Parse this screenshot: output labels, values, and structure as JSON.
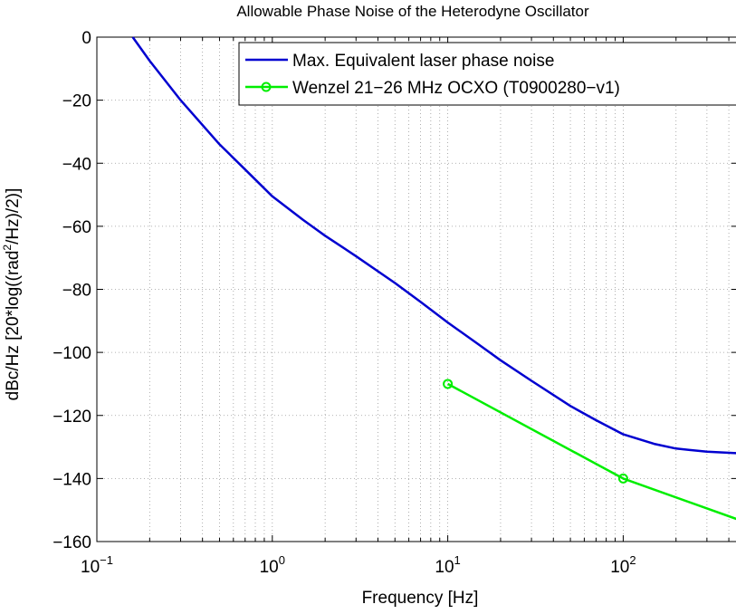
{
  "chart_data": {
    "type": "line",
    "title": "Allowable Phase Noise of the Heterodyne Oscillator",
    "xlabel": "Frequency [Hz]",
    "ylabel_prefix": "dBc/Hz [20*log((rad",
    "ylabel_sup": "2",
    "ylabel_suffix": "/Hz)/2)]",
    "x_scale": "log",
    "xlim": [
      0.1,
      450
    ],
    "ylim": [
      -160,
      0
    ],
    "grid": true,
    "legend_position": "top-right",
    "x_ticks": [
      {
        "value": 0.1,
        "base": "10",
        "exp": "−1"
      },
      {
        "value": 1,
        "base": "10",
        "exp": "0"
      },
      {
        "value": 10,
        "base": "10",
        "exp": "1"
      },
      {
        "value": 100,
        "base": "10",
        "exp": "2"
      }
    ],
    "y_ticks": [
      {
        "value": 0,
        "label": "0"
      },
      {
        "value": -20,
        "label": "−20"
      },
      {
        "value": -40,
        "label": "−40"
      },
      {
        "value": -60,
        "label": "−60"
      },
      {
        "value": -80,
        "label": "−80"
      },
      {
        "value": -100,
        "label": "−100"
      },
      {
        "value": -120,
        "label": "−120"
      },
      {
        "value": -140,
        "label": "−140"
      },
      {
        "value": -160,
        "label": "−160"
      }
    ],
    "series": [
      {
        "name": "Max. Equivalent laser phase noise",
        "color": "#0000d0",
        "marker": "none",
        "x": [
          0.16,
          0.2,
          0.3,
          0.5,
          0.7,
          1,
          1.5,
          2,
          3,
          5,
          7,
          10,
          15,
          20,
          30,
          50,
          70,
          100,
          150,
          200,
          300,
          450
        ],
        "y": [
          0,
          -7.5,
          -20,
          -34,
          -42,
          -50.5,
          -58,
          -63,
          -69.5,
          -78,
          -84,
          -90.5,
          -97.5,
          -102.5,
          -109,
          -117,
          -121.5,
          -126,
          -129,
          -130.5,
          -131.5,
          -132
        ]
      },
      {
        "name": "Wenzel 21−26 MHz OCXO (T0900280−v1)",
        "color": "#00ee00",
        "marker": "circle",
        "marker_x": [
          10,
          100
        ],
        "x": [
          10,
          100,
          450
        ],
        "y": [
          -110,
          -140,
          -153
        ]
      }
    ]
  }
}
